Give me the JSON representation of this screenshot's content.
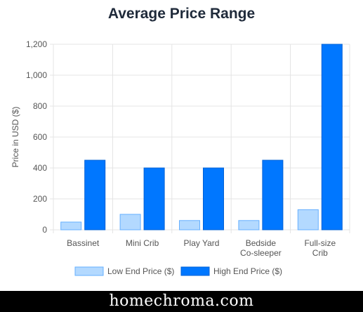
{
  "chart_data": {
    "type": "bar",
    "title": "Average Price Range",
    "ylabel": "Price in USD ($)",
    "xlabel": "",
    "categories": [
      [
        "Bassinet"
      ],
      [
        "Mini Crib"
      ],
      [
        "Play Yard"
      ],
      [
        "Bedside",
        "Co-sleeper"
      ],
      [
        "Full-size",
        "Crib"
      ]
    ],
    "series": [
      {
        "name": "Low End Price ($)",
        "values": [
          50,
          100,
          60,
          60,
          130
        ],
        "color": "#b3d9ff",
        "border": "#66b0ff"
      },
      {
        "name": "High End Price ($)",
        "values": [
          450,
          400,
          400,
          450,
          1200
        ],
        "color": "#0077ff",
        "border": "#0060d6"
      }
    ],
    "ylim": [
      0,
      1200
    ],
    "yticks": [
      0,
      200,
      400,
      600,
      800,
      1000,
      1200
    ],
    "grid": true,
    "legend_position": "bottom"
  },
  "footer": {
    "brand": "homechroma.com"
  }
}
